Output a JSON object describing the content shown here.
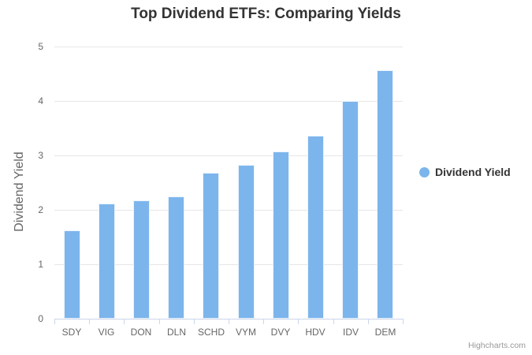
{
  "chart_data": {
    "type": "bar",
    "title": "Top Dividend ETFs: Comparing Yields",
    "categories": [
      "SDY",
      "VIG",
      "DON",
      "DLN",
      "SCHD",
      "VYM",
      "DVY",
      "HDV",
      "IDV",
      "DEM"
    ],
    "values": [
      1.63,
      2.11,
      2.18,
      2.25,
      2.68,
      2.82,
      3.07,
      3.36,
      4.0,
      4.56
    ],
    "series_name": "Dividend Yield",
    "xlabel": "",
    "ylabel": "Dividend Yield",
    "ylim": [
      0,
      5
    ],
    "yticks": [
      0,
      1,
      2,
      3,
      4,
      5
    ],
    "grid": true,
    "legend_position": "right-middle"
  },
  "legend": {
    "label": "Dividend Yield"
  },
  "credits": {
    "label": "Highcharts.com"
  },
  "colors": {
    "bar": "#7cb5ec",
    "gridline": "#e6e6e6",
    "axis_line": "#ccd6eb",
    "title_text": "#333333",
    "tick_text": "#666666",
    "legend_text": "#333333",
    "credits_text": "#999999"
  }
}
